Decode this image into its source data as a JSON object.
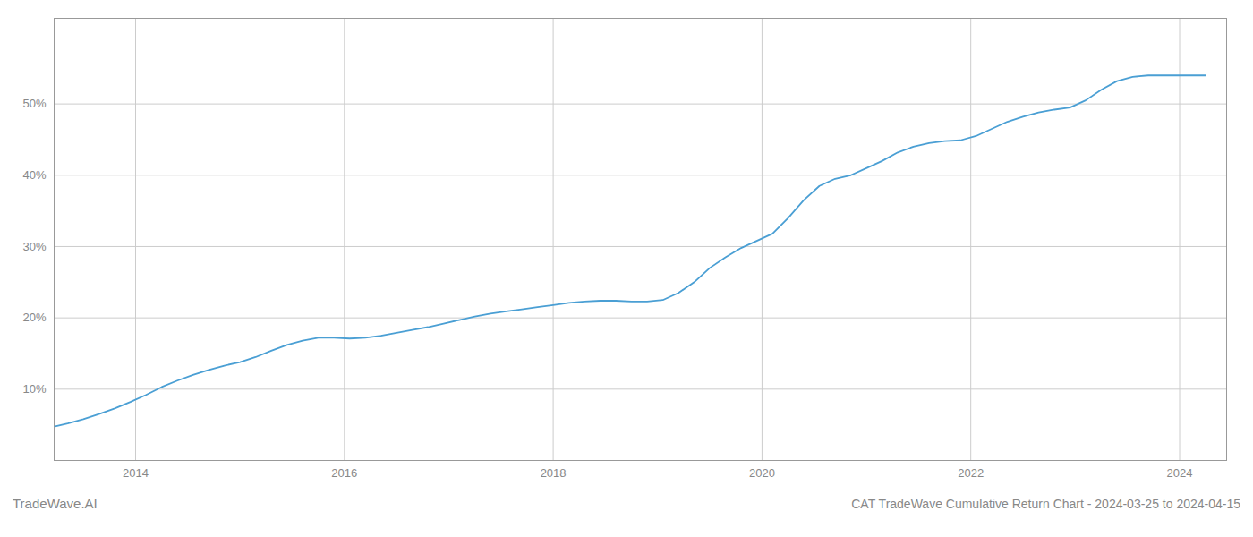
{
  "chart_data": {
    "type": "line",
    "title": "CAT TradeWave Cumulative Return Chart - 2024-03-25 to 2024-04-15",
    "annotations": [
      "TradeWave.AI"
    ],
    "x": [
      2013.23,
      2013.35,
      2013.5,
      2013.65,
      2013.8,
      2013.95,
      2014.1,
      2014.25,
      2014.4,
      2014.55,
      2014.7,
      2014.85,
      2015.0,
      2015.15,
      2015.3,
      2015.45,
      2015.6,
      2015.75,
      2015.9,
      2016.05,
      2016.2,
      2016.35,
      2016.5,
      2016.65,
      2016.8,
      2016.95,
      2017.1,
      2017.25,
      2017.4,
      2017.55,
      2017.7,
      2017.85,
      2018.0,
      2018.15,
      2018.3,
      2018.45,
      2018.6,
      2018.75,
      2018.9,
      2019.05,
      2019.2,
      2019.35,
      2019.5,
      2019.65,
      2019.8,
      2019.95,
      2020.1,
      2020.25,
      2020.4,
      2020.55,
      2020.7,
      2020.85,
      2021.0,
      2021.15,
      2021.3,
      2021.45,
      2021.6,
      2021.75,
      2021.9,
      2022.05,
      2022.2,
      2022.35,
      2022.5,
      2022.65,
      2022.8,
      2022.95,
      2023.1,
      2023.25,
      2023.4,
      2023.55,
      2023.7,
      2023.85,
      2024.0,
      2024.15,
      2024.25
    ],
    "values": [
      4.8,
      5.2,
      5.8,
      6.5,
      7.3,
      8.2,
      9.2,
      10.3,
      11.2,
      12.0,
      12.7,
      13.3,
      13.8,
      14.5,
      15.4,
      16.2,
      16.8,
      17.2,
      17.2,
      17.1,
      17.2,
      17.5,
      17.9,
      18.3,
      18.7,
      19.2,
      19.7,
      20.2,
      20.6,
      20.9,
      21.2,
      21.5,
      21.8,
      22.1,
      22.3,
      22.4,
      22.4,
      22.3,
      22.3,
      22.5,
      23.5,
      25.0,
      27.0,
      28.5,
      29.8,
      30.8,
      31.8,
      34.0,
      36.5,
      38.5,
      39.5,
      40.0,
      41.0,
      42.0,
      43.2,
      44.0,
      44.5,
      44.8,
      44.9,
      45.5,
      46.5,
      47.5,
      48.2,
      48.8,
      49.2,
      49.5,
      50.5,
      52.0,
      53.2,
      53.8,
      54.0,
      54.0,
      54.0,
      54.0,
      54.0
    ],
    "color": "#4a9fd4",
    "xlim": [
      2013.22,
      2024.45
    ],
    "xticks": [
      2014,
      2016,
      2018,
      2020,
      2022,
      2024
    ],
    "ylim": [
      0,
      62
    ],
    "yticks": [
      {
        "value": 10,
        "label": "10%"
      },
      {
        "value": 20,
        "label": "20%"
      },
      {
        "value": 30,
        "label": "30%"
      },
      {
        "value": 40,
        "label": "40%"
      },
      {
        "value": 50,
        "label": "50%"
      }
    ],
    "grid": true
  }
}
